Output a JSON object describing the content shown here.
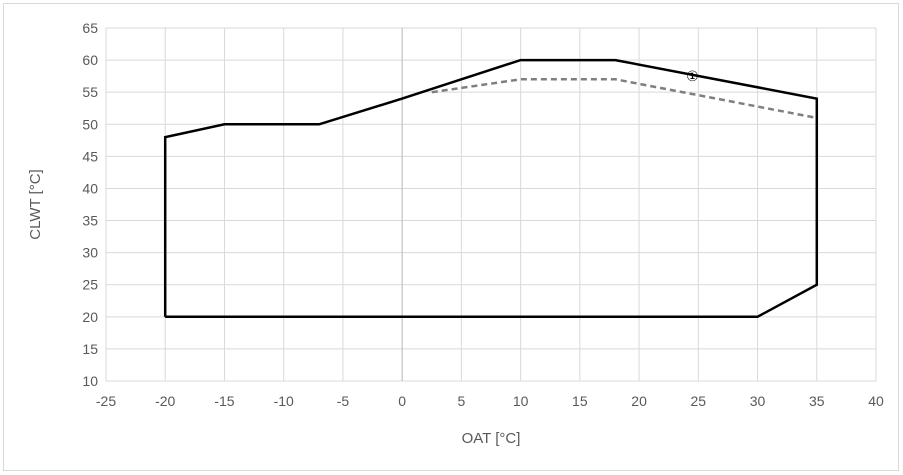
{
  "chart_data": {
    "type": "line",
    "title": "",
    "xlabel": "OAT [°C]",
    "ylabel": "CLWT [°C]",
    "xlim": [
      -25,
      40
    ],
    "ylim": [
      10,
      65
    ],
    "xticks": [
      -25,
      -20,
      -15,
      -10,
      -5,
      0,
      5,
      10,
      15,
      20,
      25,
      30,
      35,
      40
    ],
    "yticks": [
      10,
      15,
      20,
      25,
      30,
      35,
      40,
      45,
      50,
      55,
      60,
      65
    ],
    "grid": true,
    "series": [
      {
        "style": "solid",
        "color": "#000000",
        "points": [
          [
            -20,
            20
          ],
          [
            -20,
            48
          ],
          [
            -15,
            50
          ],
          [
            -7,
            50
          ],
          [
            0,
            54
          ],
          [
            10,
            60
          ],
          [
            18,
            60
          ],
          [
            35,
            54
          ],
          [
            35,
            25
          ],
          [
            30,
            20
          ],
          [
            -20,
            20
          ]
        ]
      },
      {
        "style": "dashed",
        "color": "#7f7f7f",
        "points": [
          [
            2.5,
            55
          ],
          [
            10,
            57
          ],
          [
            18,
            57
          ],
          [
            35,
            51
          ]
        ]
      }
    ],
    "annotations": [
      {
        "text": "①",
        "x": 24.5,
        "y": 57.5
      }
    ]
  }
}
